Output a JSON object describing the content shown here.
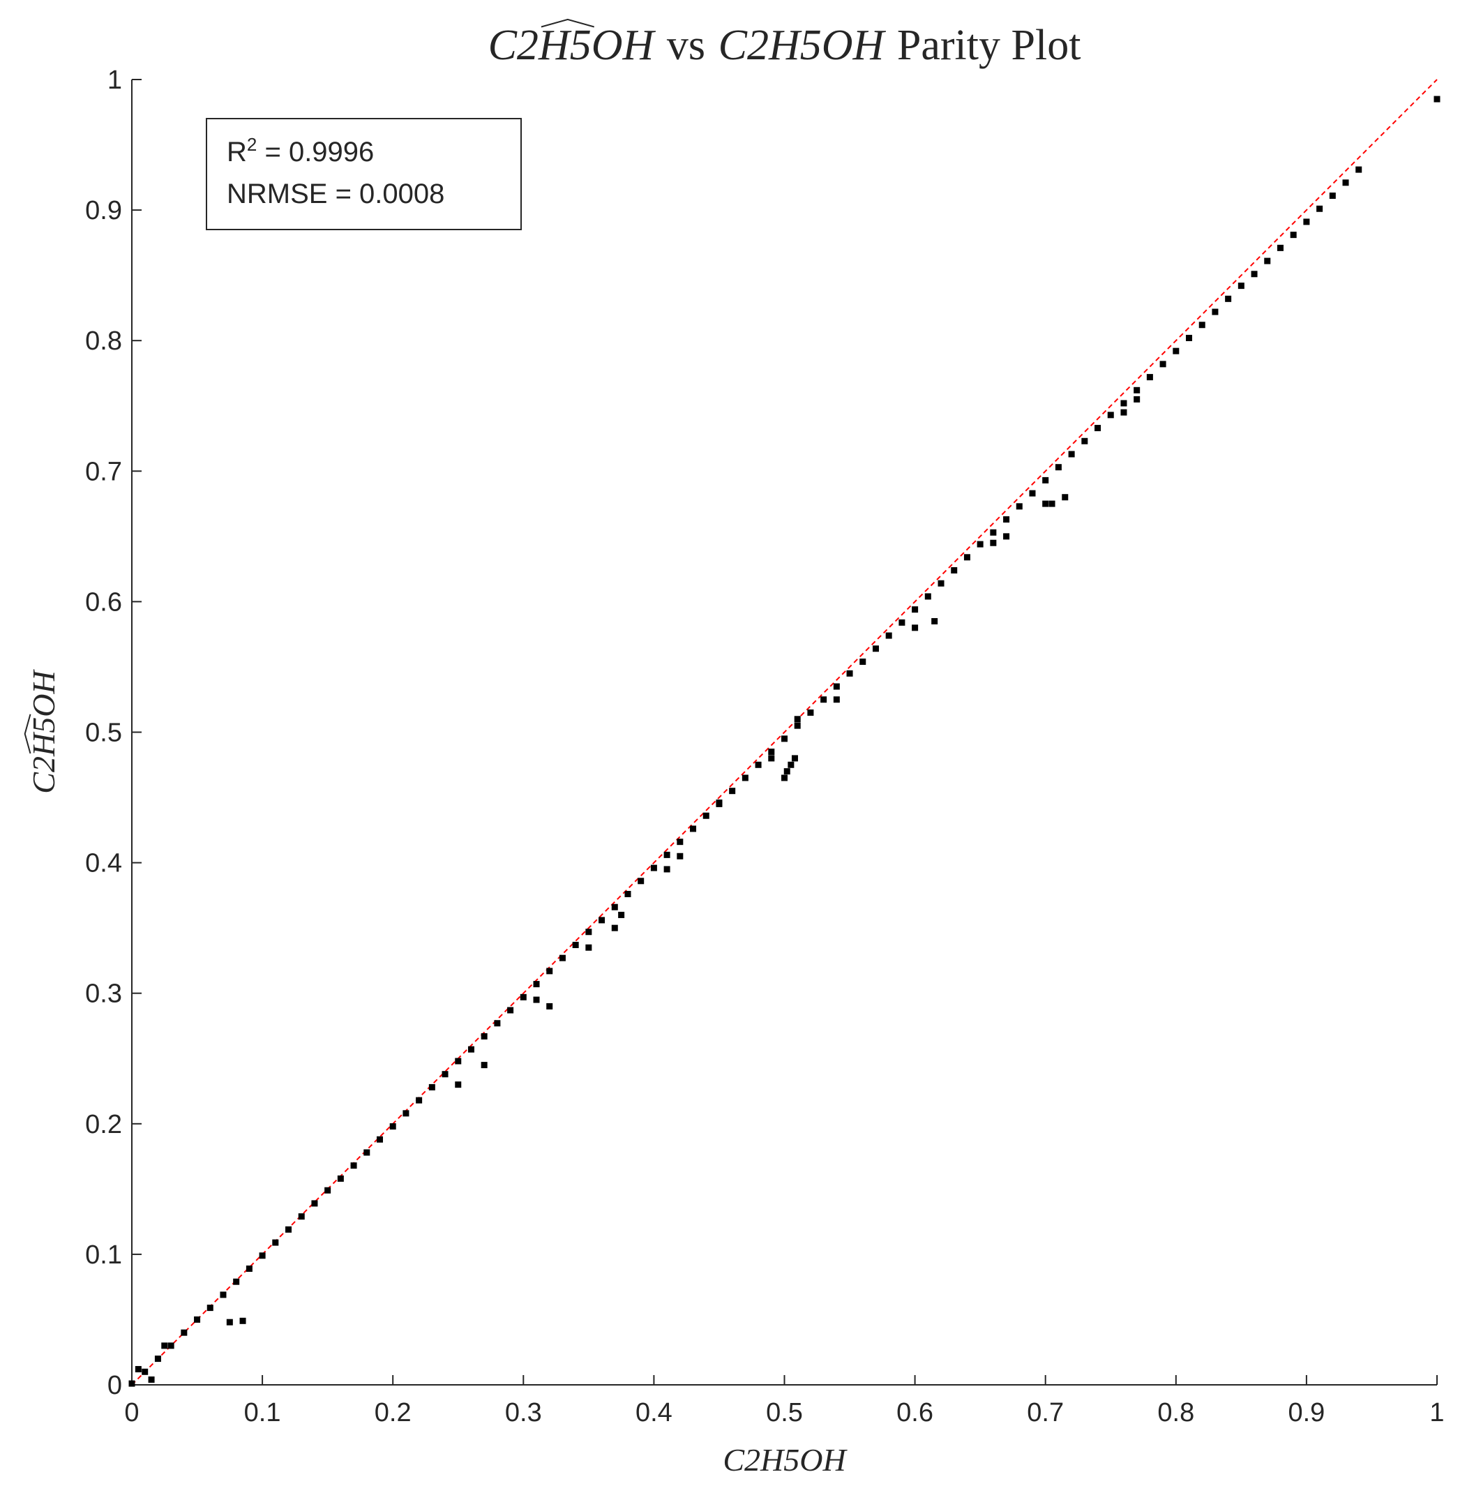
{
  "chart_data": {
    "type": "scatter",
    "title": [
      {
        "text": "C2",
        "italic": true
      },
      {
        "text": "H5",
        "italic": true,
        "hat": true
      },
      {
        "text": "OH",
        "italic": true
      },
      {
        "text": "vs",
        "italic": false
      },
      {
        "text": "C2H5OH",
        "italic": true
      },
      {
        "text": "Parity Plot",
        "italic": false
      }
    ],
    "x_label": [
      {
        "text": "C2H5OH",
        "italic": true
      }
    ],
    "y_label": [
      {
        "text": "C2",
        "italic": true
      },
      {
        "text": "H5",
        "italic": true,
        "hat": true
      },
      {
        "text": "OH",
        "italic": true
      }
    ],
    "xlim": [
      0,
      1
    ],
    "ylim": [
      0,
      1
    ],
    "xticks": [
      0,
      0.1,
      0.2,
      0.3,
      0.4,
      0.5,
      0.6,
      0.7,
      0.8,
      0.9,
      1
    ],
    "yticks": [
      0,
      0.1,
      0.2,
      0.3,
      0.4,
      0.5,
      0.6,
      0.7,
      0.8,
      0.9,
      1
    ],
    "grid": false,
    "annotation": {
      "lines": [
        [
          {
            "text": "R"
          },
          {
            "text": "2",
            "sup": true
          },
          {
            "text": " = 0.9996"
          }
        ],
        [
          {
            "text": "NRMSE = 0.0008"
          }
        ]
      ]
    },
    "reference_line": {
      "x": [
        0,
        1
      ],
      "y": [
        0,
        1
      ],
      "color": "#ff0000",
      "dashed": true
    },
    "series": [
      {
        "color": "#000000",
        "x": [
          0,
          0.01,
          0.02,
          0.03,
          0.04,
          0.05,
          0.06,
          0.07,
          0.08,
          0.09,
          0.1,
          0.11,
          0.12,
          0.13,
          0.14,
          0.15,
          0.16,
          0.17,
          0.18,
          0.19,
          0.2,
          0.21,
          0.22,
          0.23,
          0.24,
          0.25,
          0.26,
          0.27,
          0.28,
          0.29,
          0.3,
          0.31,
          0.32,
          0.33,
          0.34,
          0.35,
          0.36,
          0.37,
          0.38,
          0.39,
          0.4,
          0.41,
          0.42,
          0.43,
          0.44,
          0.45,
          0.46,
          0.47,
          0.48,
          0.49,
          0.5,
          0.51,
          0.52,
          0.53,
          0.54,
          0.55,
          0.56,
          0.57,
          0.58,
          0.59,
          0.6,
          0.61,
          0.62,
          0.63,
          0.64,
          0.65,
          0.66,
          0.67,
          0.68,
          0.69,
          0.7,
          0.71,
          0.72,
          0.73,
          0.74,
          0.75,
          0.76,
          0.77,
          0.78,
          0.79,
          0.8,
          0.81,
          0.82,
          0.83,
          0.84,
          0.85,
          0.86,
          0.87,
          0.88,
          0.89,
          0.9,
          0.91,
          0.92,
          0.93,
          0.94,
          0.005,
          0.015,
          0.025,
          0.075,
          0.085,
          0.25,
          0.27,
          0.31,
          0.32,
          0.35,
          0.37,
          0.375,
          0.41,
          0.42,
          0.45,
          0.5,
          0.502,
          0.505,
          0.508,
          0.49,
          0.51,
          0.54,
          0.6,
          0.615,
          0.66,
          0.67,
          0.7,
          0.705,
          0.715,
          0.76,
          0.77,
          1.0
        ],
        "y": [
          0.001,
          0.01,
          0.02,
          0.03,
          0.04,
          0.05,
          0.059,
          0.069,
          0.079,
          0.089,
          0.099,
          0.109,
          0.119,
          0.129,
          0.139,
          0.149,
          0.158,
          0.168,
          0.178,
          0.188,
          0.198,
          0.208,
          0.218,
          0.228,
          0.238,
          0.248,
          0.257,
          0.267,
          0.277,
          0.287,
          0.297,
          0.307,
          0.317,
          0.327,
          0.337,
          0.347,
          0.356,
          0.366,
          0.376,
          0.386,
          0.396,
          0.406,
          0.416,
          0.426,
          0.436,
          0.446,
          0.455,
          0.465,
          0.475,
          0.485,
          0.495,
          0.505,
          0.515,
          0.525,
          0.535,
          0.545,
          0.554,
          0.564,
          0.574,
          0.584,
          0.594,
          0.604,
          0.614,
          0.624,
          0.634,
          0.644,
          0.653,
          0.663,
          0.673,
          0.683,
          0.693,
          0.703,
          0.713,
          0.723,
          0.733,
          0.743,
          0.752,
          0.762,
          0.772,
          0.782,
          0.792,
          0.802,
          0.812,
          0.822,
          0.832,
          0.842,
          0.851,
          0.861,
          0.871,
          0.881,
          0.891,
          0.901,
          0.911,
          0.921,
          0.931,
          0.012,
          0.004,
          0.03,
          0.048,
          0.049,
          0.23,
          0.245,
          0.295,
          0.29,
          0.335,
          0.35,
          0.36,
          0.395,
          0.405,
          0.445,
          0.465,
          0.47,
          0.475,
          0.48,
          0.48,
          0.51,
          0.525,
          0.58,
          0.585,
          0.645,
          0.65,
          0.675,
          0.675,
          0.68,
          0.745,
          0.755,
          0.985
        ]
      }
    ]
  }
}
